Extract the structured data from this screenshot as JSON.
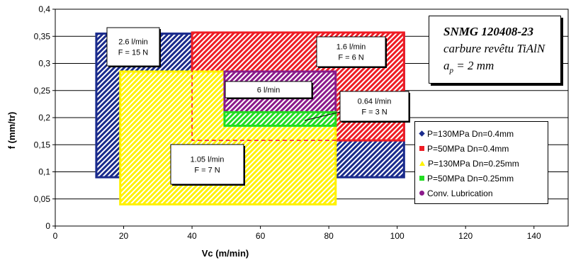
{
  "chart_data": {
    "type": "area",
    "xlabel": "Vc (m/min)",
    "ylabel": "f (mm/tr)",
    "xlim": [
      0,
      150
    ],
    "ylim": [
      0,
      0.4
    ],
    "x_ticks": [
      "0",
      "20",
      "40",
      "60",
      "80",
      "100",
      "120",
      "140"
    ],
    "y_ticks": [
      "0",
      "0,05",
      "0,1",
      "0,15",
      "0,2",
      "0,25",
      "0,3",
      "0,35",
      "0,4"
    ],
    "grid": "horizontal",
    "legend_position": "right",
    "series": [
      {
        "name": "P=130MPa Dn=0.4mm",
        "marker": "diamond",
        "color": "#1a2b8c",
        "region": {
          "x": [
            12,
            102
          ],
          "y": [
            0.09,
            0.355
          ]
        }
      },
      {
        "name": "P=50MPa Dn=0.4mm",
        "marker": "square",
        "color": "#ee1c24",
        "region": {
          "x": [
            40,
            102
          ],
          "y": [
            0.158,
            0.357
          ]
        }
      },
      {
        "name": "P=130MPa Dn=0.25mm",
        "marker": "triangle",
        "color": "#fff200",
        "region": {
          "x": [
            19,
            82
          ],
          "y": [
            0.04,
            0.285
          ]
        }
      },
      {
        "name": "P=50MPa Dn=0.25mm",
        "marker": "square",
        "color": "#22dd22",
        "region": {
          "x": [
            49.5,
            82
          ],
          "y": [
            0.185,
            0.21
          ]
        }
      },
      {
        "name": "Conv. Lubrication",
        "marker": "circle",
        "color": "#8b1a8b",
        "region": {
          "x": [
            49.5,
            82
          ],
          "y": [
            0.21,
            0.285
          ]
        }
      }
    ],
    "annotations": [
      {
        "lines": [
          "2.6 l/min",
          "F = 15 N"
        ]
      },
      {
        "lines": [
          "1.6 l/min",
          "F = 6 N"
        ]
      },
      {
        "lines": [
          "6 l/min"
        ]
      },
      {
        "lines": [
          "0.64 l/min",
          "F = 3 N"
        ]
      },
      {
        "lines": [
          "1.05 l/min",
          "F = 7 N"
        ]
      }
    ],
    "info_box": {
      "line1": "SNMG 120408-23",
      "line2": "carbure revêtu TiAlN",
      "line3_symbol": "a",
      "line3_sub": "p",
      "line3_rest": " = 2 mm"
    }
  }
}
